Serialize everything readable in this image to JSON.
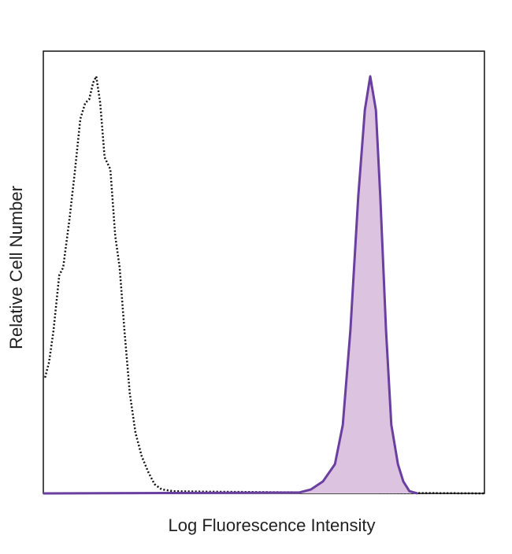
{
  "chart_data": {
    "type": "line",
    "xlabel": "Log Fluorescence Intensity",
    "ylabel": "Relative Cell Number",
    "xlim": [
      0,
      100
    ],
    "ylim": [
      0,
      100
    ],
    "series": [
      {
        "color": "#111111",
        "style": "dotted",
        "fill": null,
        "x": [
          0.4,
          1.3,
          2.3,
          3.6,
          4.5,
          5.9,
          7.1,
          8.4,
          9.5,
          10.4,
          11.3,
          12,
          12.9,
          13.9,
          15.2,
          16.3,
          17.3,
          18.4,
          19.6,
          20.9,
          22.3,
          23.8,
          25.2,
          26.8,
          29.5,
          36.6,
          61.6,
          100
        ],
        "values": [
          26.2,
          29.7,
          36.8,
          49.3,
          51.1,
          61.7,
          72.4,
          84.7,
          88.3,
          89.1,
          92.9,
          94.3,
          88.3,
          76,
          73.3,
          58.2,
          51.1,
          36.8,
          22.6,
          13.7,
          8.4,
          4.8,
          2.1,
          0.9,
          0.5,
          0.4,
          0.2,
          0
        ]
      },
      {
        "color": "#6a3fa0",
        "style": "solid",
        "fill": "#dcc3df",
        "x": [
          0,
          58,
          60.7,
          63.4,
          66.1,
          67.9,
          69.6,
          71.4,
          72.9,
          74.1,
          75.4,
          76.4,
          77.7,
          78.9,
          80.4,
          81.6,
          83,
          84.8
        ],
        "values": [
          0,
          0.2,
          0.9,
          2.7,
          6.6,
          15.5,
          36.8,
          67.1,
          86.7,
          94.3,
          86.7,
          67.1,
          36.8,
          15.5,
          6.6,
          2.7,
          0.5,
          0
        ]
      }
    ]
  }
}
